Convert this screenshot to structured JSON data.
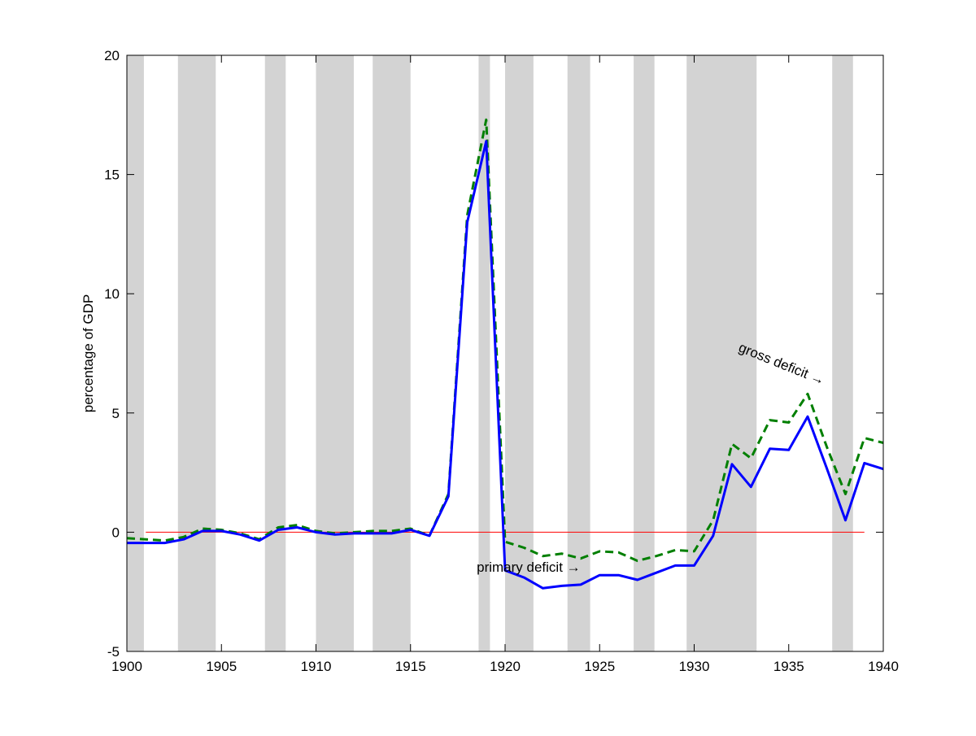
{
  "chart_data": {
    "type": "line",
    "title": "",
    "xlabel": "",
    "ylabel": "percentage of GDP",
    "xlim": [
      1900,
      1940
    ],
    "ylim": [
      -5,
      20
    ],
    "grid": false,
    "xticks": [
      1900,
      1905,
      1910,
      1915,
      1920,
      1925,
      1930,
      1935,
      1940
    ],
    "yticks": [
      -5,
      0,
      5,
      10,
      15,
      20
    ],
    "shaded_periods": [
      [
        1900,
        1900.9
      ],
      [
        1902.7,
        1904.7
      ],
      [
        1907.3,
        1908.4
      ],
      [
        1910,
        1912
      ],
      [
        1913,
        1915
      ],
      [
        1918.6,
        1919.2
      ],
      [
        1920,
        1921.5
      ],
      [
        1923.3,
        1924.5
      ],
      [
        1926.8,
        1927.9
      ],
      [
        1929.6,
        1933.3
      ],
      [
        1937.3,
        1938.4
      ]
    ],
    "colors": {
      "primary": "#0000ff",
      "gross": "#007f00",
      "zero_line": "#ff0000",
      "shade": "#d3d3d3"
    },
    "zero_line": {
      "y": 0,
      "x": [
        1901,
        1939
      ]
    },
    "x": [
      1900,
      1901,
      1902,
      1903,
      1904,
      1905,
      1906,
      1907,
      1908,
      1909,
      1910,
      1911,
      1912,
      1913,
      1914,
      1915,
      1916,
      1917,
      1918,
      1919,
      1920,
      1921,
      1922,
      1923,
      1924,
      1925,
      1926,
      1927,
      1928,
      1929,
      1930,
      1931,
      1932,
      1933,
      1934,
      1935,
      1936,
      1937,
      1938,
      1939,
      1940
    ],
    "series": [
      {
        "key": "primary",
        "style": "solid",
        "values": [
          -0.45,
          -0.45,
          -0.45,
          -0.3,
          0.05,
          0.05,
          -0.1,
          -0.35,
          0.1,
          0.2,
          0.0,
          -0.1,
          -0.05,
          -0.05,
          -0.05,
          0.1,
          -0.15,
          1.5,
          13.0,
          16.4,
          -1.6,
          -1.9,
          -2.35,
          -2.25,
          -2.2,
          -1.8,
          -1.8,
          -2.0,
          -1.7,
          -1.4,
          -1.4,
          -0.15,
          2.85,
          1.9,
          3.5,
          3.45,
          4.85,
          2.7,
          0.5,
          2.9,
          2.65
        ]
      },
      {
        "key": "gross",
        "style": "dashed",
        "values": [
          -0.25,
          -0.3,
          -0.35,
          -0.2,
          0.15,
          0.1,
          -0.05,
          -0.3,
          0.2,
          0.3,
          0.05,
          -0.05,
          0.0,
          0.05,
          0.05,
          0.15,
          -0.15,
          1.6,
          13.3,
          17.3,
          -0.4,
          -0.65,
          -1.0,
          -0.9,
          -1.1,
          -0.8,
          -0.85,
          -1.2,
          -1.0,
          -0.75,
          -0.8,
          0.5,
          3.7,
          3.1,
          4.7,
          4.6,
          5.8,
          3.6,
          1.6,
          3.95,
          3.75
        ]
      }
    ],
    "annotations": [
      {
        "id": "gross",
        "text": "gross deficit",
        "arrow": "→",
        "x": 1932.3,
        "y": 7.6,
        "rotate": 22
      },
      {
        "id": "primary",
        "text": "primary deficit",
        "arrow": "→",
        "x": 1918.5,
        "y": -1.65,
        "rotate": 0
      }
    ]
  }
}
